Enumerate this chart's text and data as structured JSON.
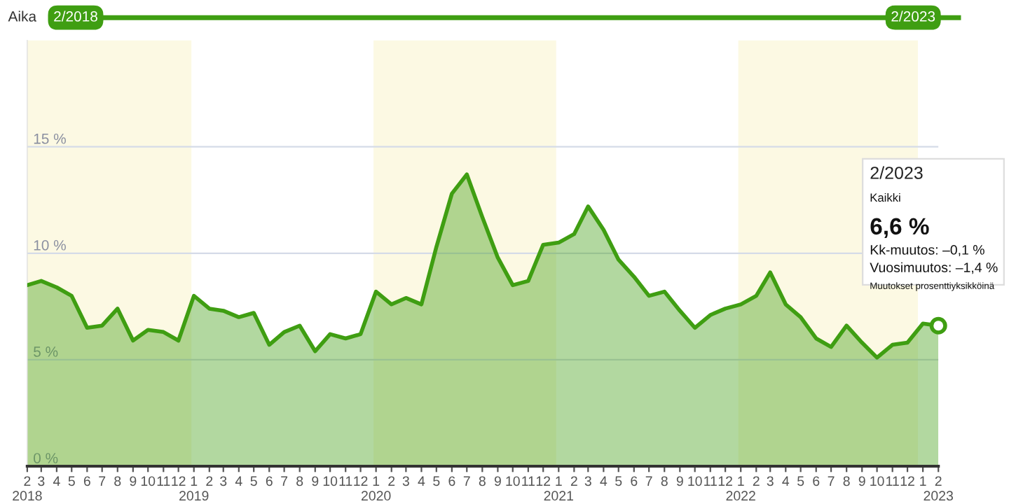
{
  "chart_data": {
    "type": "area",
    "x": [
      "2018-02",
      "2018-03",
      "2018-04",
      "2018-05",
      "2018-06",
      "2018-07",
      "2018-08",
      "2018-09",
      "2018-10",
      "2018-11",
      "2018-12",
      "2019-01",
      "2019-02",
      "2019-03",
      "2019-04",
      "2019-05",
      "2019-06",
      "2019-07",
      "2019-08",
      "2019-09",
      "2019-10",
      "2019-11",
      "2019-12",
      "2020-01",
      "2020-02",
      "2020-03",
      "2020-04",
      "2020-05",
      "2020-06",
      "2020-07",
      "2020-08",
      "2020-09",
      "2020-10",
      "2020-11",
      "2020-12",
      "2021-01",
      "2021-02",
      "2021-03",
      "2021-04",
      "2021-05",
      "2021-06",
      "2021-07",
      "2021-08",
      "2021-09",
      "2021-10",
      "2021-11",
      "2021-12",
      "2022-01",
      "2022-02",
      "2022-03",
      "2022-04",
      "2022-05",
      "2022-06",
      "2022-07",
      "2022-08",
      "2022-09",
      "2022-10",
      "2022-11",
      "2022-12",
      "2023-01",
      "2023-02"
    ],
    "series": [
      {
        "color": "#3f9e12",
        "values": [
          8.5,
          8.7,
          8.4,
          8.0,
          6.5,
          6.6,
          7.4,
          5.9,
          6.4,
          6.3,
          5.9,
          8.0,
          7.4,
          7.3,
          7.0,
          7.2,
          5.7,
          6.3,
          6.6,
          5.4,
          6.2,
          6.0,
          6.2,
          8.2,
          7.6,
          7.9,
          7.6,
          10.3,
          12.8,
          13.7,
          11.7,
          9.8,
          8.5,
          8.7,
          10.4,
          10.5,
          10.9,
          12.2,
          11.1,
          9.7,
          8.9,
          8.0,
          8.2,
          7.3,
          6.5,
          7.1,
          7.4,
          7.6,
          8.0,
          9.1,
          7.6,
          7.0,
          6.0,
          5.6,
          6.6,
          5.8,
          5.1,
          5.7,
          5.8,
          6.7,
          6.6
        ]
      }
    ],
    "xlim": [
      "2018-02",
      "2023-02"
    ],
    "xticks": [
      {
        "value": "2018-02",
        "label": "2\n2018"
      },
      {
        "value": "2018-03",
        "label": "3"
      },
      {
        "value": "2018-04",
        "label": "4"
      },
      {
        "value": "2018-05",
        "label": "5"
      },
      {
        "value": "2018-06",
        "label": "6"
      },
      {
        "value": "2018-07",
        "label": "7"
      },
      {
        "value": "2018-08",
        "label": "8"
      },
      {
        "value": "2018-09",
        "label": "9"
      },
      {
        "value": "2018-10",
        "label": "10"
      },
      {
        "value": "2018-11",
        "label": "11"
      },
      {
        "value": "2018-12",
        "label": "12"
      },
      {
        "value": "2019-01",
        "label": "1\n2019"
      },
      {
        "value": "2019-02",
        "label": "2"
      },
      {
        "value": "2019-03",
        "label": "3"
      },
      {
        "value": "2019-04",
        "label": "4"
      },
      {
        "value": "2019-05",
        "label": "5"
      },
      {
        "value": "2019-06",
        "label": "6"
      },
      {
        "value": "2019-07",
        "label": "7"
      },
      {
        "value": "2019-08",
        "label": "8"
      },
      {
        "value": "2019-09",
        "label": "9"
      },
      {
        "value": "2019-10",
        "label": "10"
      },
      {
        "value": "2019-11",
        "label": "11"
      },
      {
        "value": "2019-12",
        "label": "12"
      },
      {
        "value": "2020-01",
        "label": "1\n2020"
      },
      {
        "value": "2020-02",
        "label": "2"
      },
      {
        "value": "2020-03",
        "label": "3"
      },
      {
        "value": "2020-04",
        "label": "4"
      },
      {
        "value": "2020-05",
        "label": "5"
      },
      {
        "value": "2020-06",
        "label": "6"
      },
      {
        "value": "2020-07",
        "label": "7"
      },
      {
        "value": "2020-08",
        "label": "8"
      },
      {
        "value": "2020-09",
        "label": "9"
      },
      {
        "value": "2020-10",
        "label": "10"
      },
      {
        "value": "2020-11",
        "label": "11"
      },
      {
        "value": "2020-12",
        "label": "12"
      },
      {
        "value": "2021-01",
        "label": "1\n2021"
      },
      {
        "value": "2021-02",
        "label": "2"
      },
      {
        "value": "2021-03",
        "label": "3"
      },
      {
        "value": "2021-04",
        "label": "4"
      },
      {
        "value": "2021-05",
        "label": "5"
      },
      {
        "value": "2021-06",
        "label": "6"
      },
      {
        "value": "2021-07",
        "label": "7"
      },
      {
        "value": "2021-08",
        "label": "8"
      },
      {
        "value": "2021-09",
        "label": "9"
      },
      {
        "value": "2021-10",
        "label": "10"
      },
      {
        "value": "2021-11",
        "label": "11"
      },
      {
        "value": "2021-12",
        "label": "12"
      },
      {
        "value": "2022-01",
        "label": "1\n2022"
      },
      {
        "value": "2022-02",
        "label": "2"
      },
      {
        "value": "2022-03",
        "label": "3"
      },
      {
        "value": "2022-04",
        "label": "4"
      },
      {
        "value": "2022-05",
        "label": "5"
      },
      {
        "value": "2022-06",
        "label": "6"
      },
      {
        "value": "2022-07",
        "label": "7"
      },
      {
        "value": "2022-08",
        "label": "8"
      },
      {
        "value": "2022-09",
        "label": "9"
      },
      {
        "value": "2022-10",
        "label": "10"
      },
      {
        "value": "2022-11",
        "label": "11"
      },
      {
        "value": "2022-12",
        "label": "12"
      },
      {
        "value": "2023-01",
        "label": "1"
      },
      {
        "value": "2023-02",
        "label": "2\n2023"
      }
    ],
    "ylim": [
      0,
      20
    ],
    "yticks": [
      {
        "value": 0,
        "label": "0 %"
      },
      {
        "value": 5,
        "label": "5 %"
      },
      {
        "value": 10,
        "label": "10 %"
      },
      {
        "value": 15,
        "label": "15 %"
      }
    ],
    "grid": "y",
    "bands": [
      {
        "axis": "x",
        "from": "2018-02",
        "to": "2018-12-27",
        "color": "#fcf9e3"
      },
      {
        "axis": "x",
        "from": "2019-12-27",
        "to": "2020-12-27",
        "color": "#fcf9e3"
      },
      {
        "axis": "x",
        "from": "2021-12-27",
        "to": "2022-12-22",
        "color": "#fcf9e3"
      }
    ],
    "annotations": [
      "Aika",
      "2/2018",
      "2/2023",
      "2/2023",
      "Kaikki",
      "6,6 %",
      "Kk-muutos: –0,1 %",
      "Vuosimuutos: –1,4 %",
      "Muutokset prosenttiyksikköinä"
    ]
  }
}
